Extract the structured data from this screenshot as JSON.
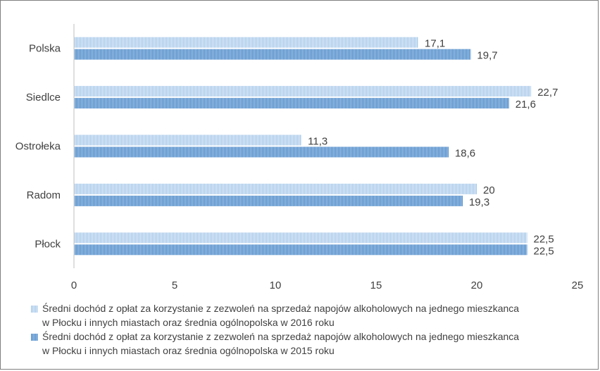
{
  "chart_data": {
    "type": "bar",
    "orientation": "horizontal",
    "categories": [
      "Polska",
      "Siedlce",
      "Ostrołeka",
      "Radom",
      "Płock"
    ],
    "series": [
      {
        "name": "Średni dochód z opłat za korzystanie z zezwoleń na sprzedaż napojów alkoholowych na jednego mieszkanca w Płocku i innych miastach oraz średnia ogólnopolska  w 2016 roku",
        "values": [
          17.1,
          22.7,
          11.3,
          20,
          22.5
        ],
        "labels": [
          "17,1",
          "22,7",
          "11,3",
          "20",
          "22,5"
        ],
        "color": "#9dc3e6"
      },
      {
        "name": "Średni dochód z opłat za korzystanie z zezwoleń na sprzedaż napojów alkoholowych na jednego mieszkanca w Płocku i innych miastach oraz średnia ogólnopolska  w 2015 roku",
        "values": [
          19.7,
          21.6,
          18.6,
          19.3,
          22.5
        ],
        "labels": [
          "19,7",
          "21,6",
          "18,6",
          "19,3",
          "22,5"
        ],
        "color": "#5b9bd5"
      }
    ],
    "xlim": [
      0,
      25
    ],
    "xticks": [
      "0",
      "5",
      "10",
      "15",
      "20",
      "25"
    ],
    "grid": false,
    "legend_position": "bottom"
  },
  "legend": {
    "item_2016_line1": "Średni dochód z opłat za korzystanie z zezwoleń na sprzedaż napojów alkoholowych na jednego mieszkanca",
    "item_2016_line2": "w Płocku i innych miastach oraz średnia ogólnopolska  w 2016 roku",
    "item_2015_line1": "Średni dochód z opłat za korzystanie z zezwoleń na sprzedaż napojów alkoholowych na jednego mieszkanca",
    "item_2015_line2": "w Płocku i innych miastach oraz średnia ogólnopolska  w 2015 roku"
  }
}
